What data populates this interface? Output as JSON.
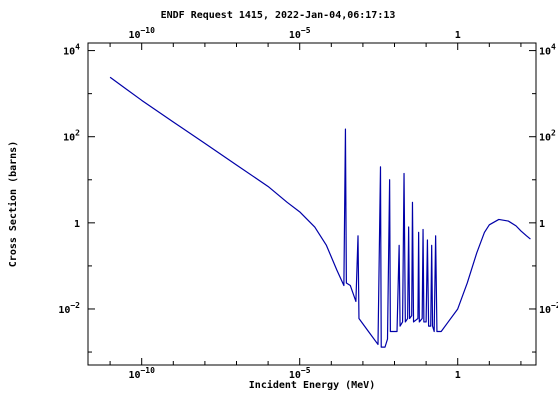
{
  "chart_data": {
    "type": "line",
    "title": "ENDF Request 1415, 2022-Jan-04,06:17:13",
    "xlabel": "Incident Energy (MeV)",
    "ylabel": "Cross Section (barns)",
    "xscale": "log",
    "yscale": "log",
    "xlim": [
      2e-12,
      300
    ],
    "ylim": [
      0.0005,
      15000
    ],
    "xticks": [
      {
        "value": 1e-10,
        "base": "10",
        "exp": "−10"
      },
      {
        "value": 1e-05,
        "base": "10",
        "exp": "−5"
      },
      {
        "value": 1,
        "base": "1",
        "exp": ""
      }
    ],
    "yticks": [
      {
        "value": 10000,
        "base": "10",
        "exp": "4"
      },
      {
        "value": 100,
        "base": "10",
        "exp": "2"
      },
      {
        "value": 1,
        "base": "1",
        "exp": ""
      },
      {
        "value": 0.01,
        "base": "10",
        "exp": "−2"
      }
    ],
    "grid": false,
    "line_color": "#0000a8",
    "series": [
      {
        "points": [
          [
            1e-11,
            2400
          ],
          [
            1e-10,
            700
          ],
          [
            1e-09,
            220
          ],
          [
            1e-08,
            70
          ],
          [
            1e-07,
            22
          ],
          [
            1e-06,
            7
          ],
          [
            4e-06,
            3
          ],
          [
            1e-05,
            1.8
          ],
          [
            3e-05,
            0.8
          ],
          [
            7e-05,
            0.3
          ],
          [
            0.00015,
            0.08
          ],
          [
            0.00025,
            0.035
          ],
          [
            0.00028,
            150
          ],
          [
            0.0003,
            0.04
          ],
          [
            0.0004,
            0.035
          ],
          [
            0.0006,
            0.015
          ],
          [
            0.0007,
            0.5
          ],
          [
            0.00075,
            0.006
          ],
          [
            0.0015,
            0.003
          ],
          [
            0.003,
            0.0015
          ],
          [
            0.0036,
            20
          ],
          [
            0.0038,
            0.0013
          ],
          [
            0.005,
            0.0013
          ],
          [
            0.006,
            0.002
          ],
          [
            0.007,
            10
          ],
          [
            0.0074,
            0.003
          ],
          [
            0.012,
            0.003
          ],
          [
            0.014,
            0.3
          ],
          [
            0.015,
            0.004
          ],
          [
            0.018,
            0.005
          ],
          [
            0.02,
            14
          ],
          [
            0.022,
            0.005
          ],
          [
            0.026,
            0.006
          ],
          [
            0.028,
            0.8
          ],
          [
            0.03,
            0.006
          ],
          [
            0.035,
            0.007
          ],
          [
            0.037,
            3
          ],
          [
            0.04,
            0.005
          ],
          [
            0.055,
            0.006
          ],
          [
            0.058,
            0.6
          ],
          [
            0.061,
            0.005
          ],
          [
            0.075,
            0.006
          ],
          [
            0.08,
            0.7
          ],
          [
            0.085,
            0.005
          ],
          [
            0.1,
            0.005
          ],
          [
            0.11,
            0.4
          ],
          [
            0.12,
            0.004
          ],
          [
            0.14,
            0.004
          ],
          [
            0.15,
            0.3
          ],
          [
            0.16,
            0.004
          ],
          [
            0.18,
            0.003
          ],
          [
            0.2,
            0.5
          ],
          [
            0.22,
            0.003
          ],
          [
            0.3,
            0.003
          ],
          [
            0.5,
            0.005
          ],
          [
            1,
            0.01
          ],
          [
            2,
            0.04
          ],
          [
            4,
            0.2
          ],
          [
            7,
            0.6
          ],
          [
            10,
            0.9
          ],
          [
            20,
            1.2
          ],
          [
            40,
            1.1
          ],
          [
            70,
            0.85
          ],
          [
            100,
            0.65
          ],
          [
            150,
            0.5
          ],
          [
            200,
            0.42
          ]
        ]
      }
    ]
  }
}
